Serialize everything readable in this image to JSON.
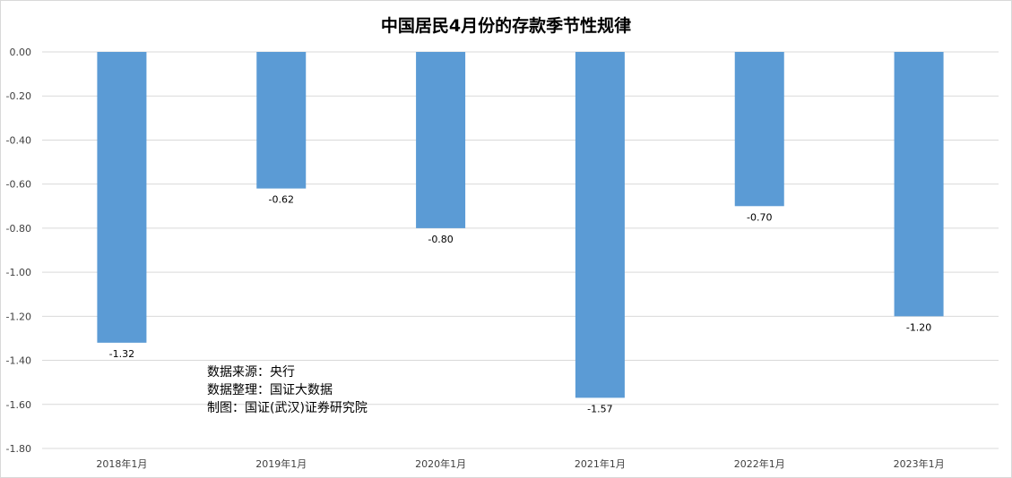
{
  "chart_data": {
    "type": "bar",
    "title": "中国居民4月份的存款季节性规律",
    "xlabel": "",
    "ylabel": "",
    "categories": [
      "2018年1月",
      "2019年1月",
      "2020年1月",
      "2021年1月",
      "2022年1月",
      "2023年1月"
    ],
    "values": [
      -1.32,
      -0.62,
      -0.8,
      -1.57,
      -0.7,
      -1.2
    ],
    "data_labels": [
      "-1.32",
      "-0.62",
      "-0.80",
      "-1.57",
      "-0.70",
      "-1.20"
    ],
    "ylim": [
      -1.8,
      0.0
    ],
    "yticks": [
      0.0,
      -0.2,
      -0.4,
      -0.6,
      -0.8,
      -1.0,
      -1.2,
      -1.4,
      -1.6,
      -1.8
    ],
    "ytick_labels": [
      "0.00",
      "-0.20",
      "-0.40",
      "-0.60",
      "-0.80",
      "-1.00",
      "-1.20",
      "-1.40",
      "-1.60",
      "-1.80"
    ],
    "grid": true,
    "legend": "none",
    "bar_color": "#5b9bd5",
    "annotations": [
      "数据来源：央行",
      "数据整理：国证大数据",
      "制图：国证(武汉)证券研究院"
    ]
  }
}
